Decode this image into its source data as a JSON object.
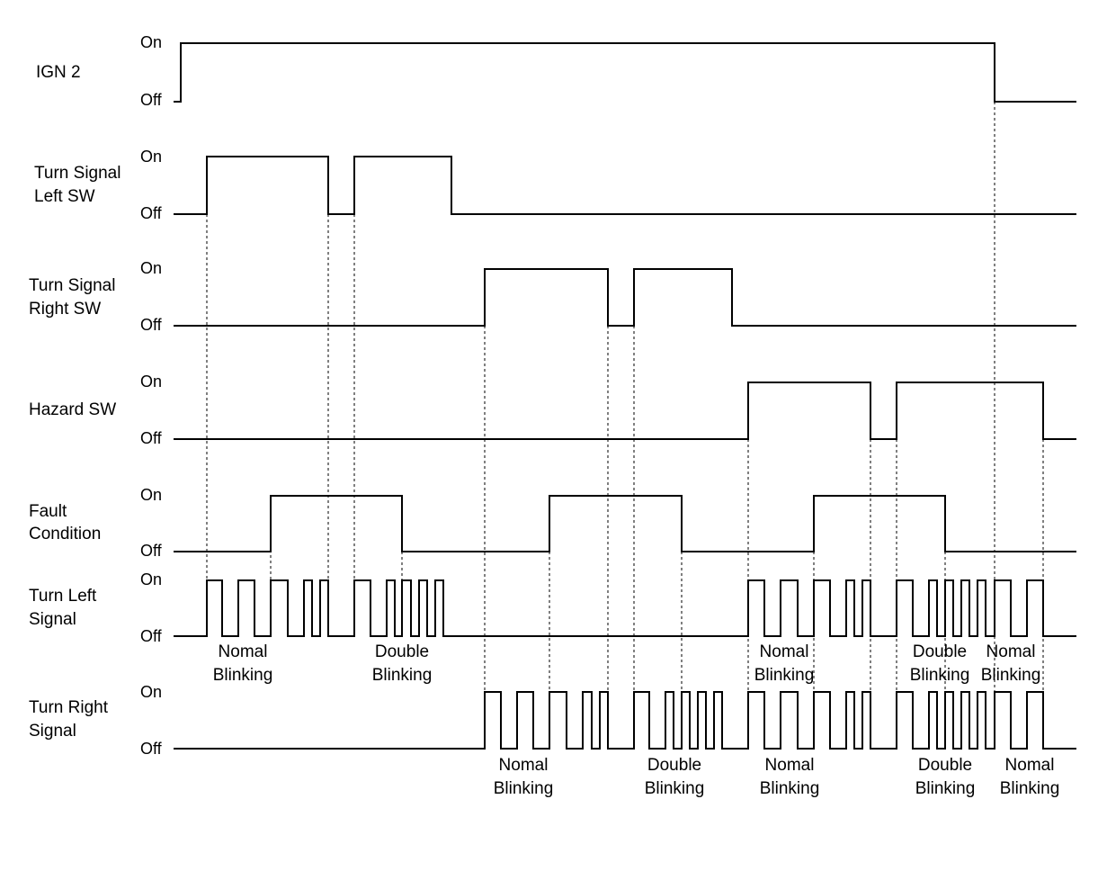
{
  "states": {
    "on": "On",
    "off": "Off"
  },
  "signals": [
    {
      "id": "ign2",
      "label_lines": [
        "IGN 2"
      ]
    },
    {
      "id": "left-sw",
      "label_lines": [
        "Turn Signal",
        "Left SW"
      ]
    },
    {
      "id": "right-sw",
      "label_lines": [
        "Turn Signal",
        "Right SW"
      ]
    },
    {
      "id": "hazard-sw",
      "label_lines": [
        "Hazard SW"
      ]
    },
    {
      "id": "fault",
      "label_lines": [
        "Fault",
        "Condition"
      ]
    },
    {
      "id": "turn-left",
      "label_lines": [
        "Turn Left",
        "Signal"
      ]
    },
    {
      "id": "turn-right",
      "label_lines": [
        "Turn Right",
        "Signal"
      ]
    }
  ],
  "annotations": {
    "turn_left": [
      {
        "lines": [
          "Nomal",
          "Blinking"
        ]
      },
      {
        "lines": [
          "Double",
          "Blinking"
        ]
      },
      {
        "lines": [
          "Nomal",
          "Blinking"
        ]
      },
      {
        "lines": [
          "Double",
          "Blinking"
        ]
      },
      {
        "lines": [
          "Nomal",
          "Blinking"
        ]
      }
    ],
    "turn_right": [
      {
        "lines": [
          "Nomal",
          "Blinking"
        ]
      },
      {
        "lines": [
          "Double",
          "Blinking"
        ]
      },
      {
        "lines": [
          "Nomal",
          "Blinking"
        ]
      },
      {
        "lines": [
          "Double",
          "Blinking"
        ]
      },
      {
        "lines": [
          "Nomal",
          "Blinking"
        ]
      }
    ]
  },
  "colors": {
    "line": "#000000",
    "background": "#ffffff"
  }
}
